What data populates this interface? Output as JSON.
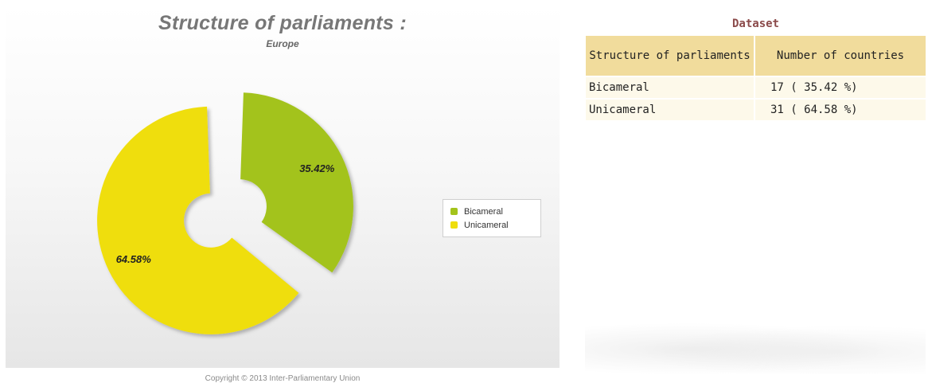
{
  "chart_data": {
    "type": "pie",
    "title": "Structure of parliaments :",
    "subtitle": "Europe",
    "series": [
      {
        "name": "Bicameral",
        "value": 35.42,
        "label": "35.42%",
        "color": "#a3c31b"
      },
      {
        "name": "Unicameral",
        "value": 64.58,
        "label": "64.58%",
        "color": "#efde0d"
      }
    ],
    "legend": {
      "placement": "right"
    }
  },
  "copyright": "Copyright © 2013 Inter-Parliamentary Union",
  "dataset": {
    "title": "Dataset",
    "columns": [
      "Structure of parliaments",
      "Number of countries"
    ],
    "rows": [
      {
        "structure": "Bicameral",
        "count": "17 ( 35.42 %)"
      },
      {
        "structure": "Unicameral",
        "count": "31 ( 64.58 %)"
      }
    ]
  }
}
